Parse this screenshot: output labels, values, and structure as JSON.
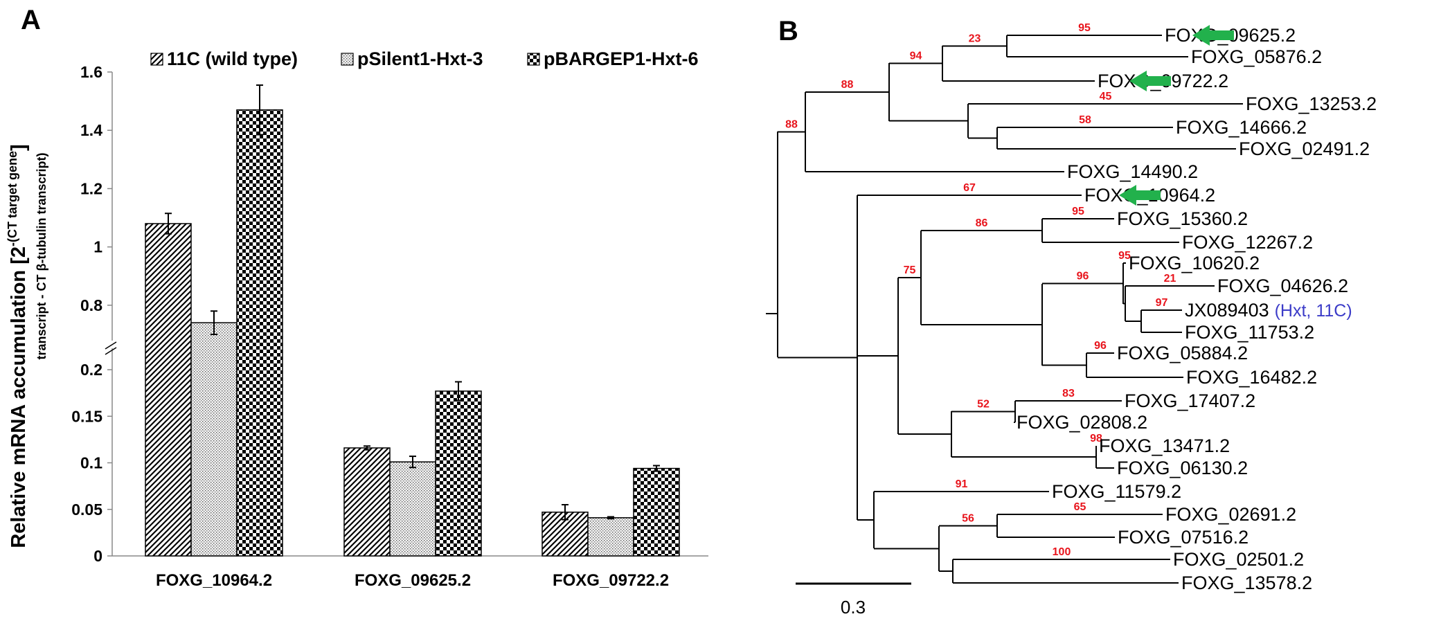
{
  "panel_a_label": "A",
  "panel_b_label": "B",
  "chart_data": {
    "type": "bar",
    "title": "",
    "categories": [
      "FOXG_10964.2",
      "FOXG_09625.2",
      "FOXG_09722.2"
    ],
    "series": [
      {
        "name": "11C (wild type)",
        "pattern": "diagonal-hatch",
        "values": [
          1.08,
          0.116,
          0.047
        ],
        "errors": [
          0.035,
          0.002,
          0.008
        ]
      },
      {
        "name": "pSilent1-Hxt-3",
        "pattern": "fine-dots",
        "values": [
          0.74,
          0.101,
          0.041
        ],
        "errors": [
          0.04,
          0.006,
          0.001
        ]
      },
      {
        "name": "pBARGEP1-Hxt-6",
        "pattern": "checkerboard",
        "values": [
          1.47,
          0.177,
          0.094
        ],
        "errors": [
          0.085,
          0.01,
          0.003
        ]
      }
    ],
    "ylabel_main": "Relative mRNA accumulation [2",
    "ylabel_exponent_1": "-(CT target gene",
    "ylabel_exponent_2": "transcript - CT β-tubulin transcript)",
    "ylabel_end": "]",
    "y_axis": {
      "broken": true,
      "lower_segment": {
        "range": [
          0,
          0.2
        ],
        "ticks": [
          0,
          0.05,
          0.1,
          0.15,
          0.2
        ],
        "tick_labels": [
          "0",
          "0.05",
          "0.1",
          "0.15",
          "0.2"
        ]
      },
      "upper_segment": {
        "range": [
          0.7,
          1.6
        ],
        "ticks": [
          0.8,
          1,
          1.2,
          1.4,
          1.6
        ],
        "tick_labels": [
          "0.8",
          "1",
          "1.2",
          "1.4",
          "1.6"
        ]
      }
    },
    "legend_position": "top",
    "grid": false
  },
  "tree": {
    "scale_bar_label": "0.3",
    "tip_labels": {
      "t09625": "FOXG_09625.2",
      "t05876": "FOXG_05876.2",
      "t09722": "FOXG_09722.2",
      "t13253": "FOXG_13253.2",
      "t14666": "FOXG_14666.2",
      "t02491": "FOXG_02491.2",
      "t14490": "FOXG_14490.2",
      "t10964": "FOXG_10964.2",
      "t15360": "FOXG_15360.2",
      "t12267": "FOXG_12267.2",
      "t10620": "FOXG_10620.2",
      "t04626": "FOXG_04626.2",
      "tJX": "JX089403",
      "tJX_note": "(Hxt, 11C)",
      "t11753": "FOXG_11753.2",
      "t05884": "FOXG_05884.2",
      "t16482": "FOXG_16482.2",
      "t17407": "FOXG_17407.2",
      "t02808": "FOXG_02808.2",
      "t13471": "FOXG_13471.2",
      "t06130": "FOXG_06130.2",
      "t11579": "FOXG_11579.2",
      "t02691": "FOXG_02691.2",
      "t07516": "FOXG_07516.2",
      "t02501": "FOXG_02501.2",
      "t13578": "FOXG_13578.2"
    },
    "bootstrap": {
      "n1": "88",
      "n2": "94",
      "n3": "23",
      "n4": "95",
      "n5": "45",
      "n6": "58",
      "n7": "88",
      "n8": "67",
      "n9": "75",
      "n10": "86",
      "n11": "95",
      "n12": "96",
      "n13": "95",
      "n14": "21",
      "n15": "97",
      "n16": "96",
      "n17": "52",
      "n18": "83",
      "n19": "98",
      "n20": "91",
      "n21": "56",
      "n22": "65",
      "n23": "100"
    },
    "highlighted_tips": [
      "FOXG_09625.2",
      "FOXG_09722.2",
      "FOXG_10964.2"
    ],
    "colors": {
      "bootstrap": "#e8141c",
      "arrow": "#22b14c",
      "note": "#3c3cc8",
      "lines": "#000000"
    }
  }
}
